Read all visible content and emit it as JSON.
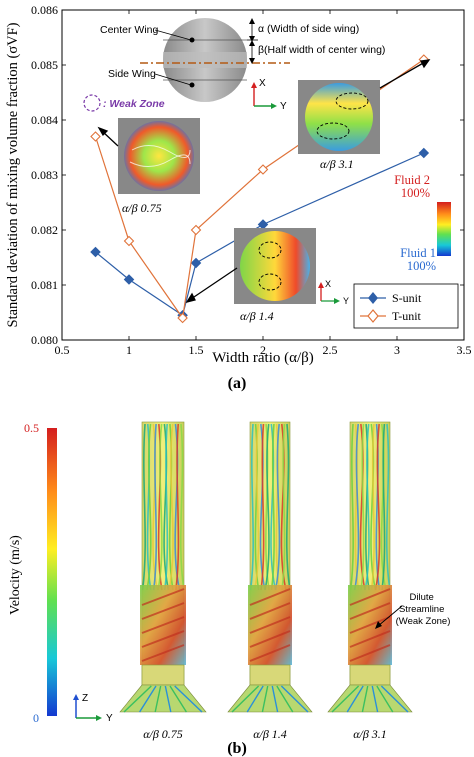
{
  "panel_a": {
    "label": "(a)",
    "chart_data": {
      "type": "line",
      "xlabel": "Width ratio (α/β)",
      "ylabel": "Standard deviation of mixing volume fraction (σVF)",
      "xlim": [
        0.5,
        3.5
      ],
      "ylim": [
        0.08,
        0.086
      ],
      "xticks": [
        "0.5",
        "1",
        "1.5",
        "2",
        "2.5",
        "3",
        "3.5"
      ],
      "yticks": [
        "0.080",
        "0.081",
        "0.082",
        "0.083",
        "0.084",
        "0.085",
        "0.086"
      ],
      "legend": "bottom-right",
      "series": [
        {
          "name": "S-unit",
          "color": "#2e5fa8",
          "marker": "diamond-filled",
          "x": [
            0.75,
            1.0,
            1.4,
            1.5,
            2.0,
            3.2
          ],
          "y": [
            0.0816,
            0.0811,
            0.08045,
            0.0814,
            0.0821,
            0.0834
          ]
        },
        {
          "name": "T-unit",
          "color": "#e0733a",
          "marker": "diamond-open",
          "x": [
            0.75,
            1.0,
            1.4,
            1.5,
            2.0,
            3.2
          ],
          "y": [
            0.0837,
            0.0818,
            0.0804,
            0.082,
            0.0831,
            0.0851
          ]
        }
      ]
    },
    "annotations": {
      "weak_zone": ": Weak Zone",
      "center_wing": "Center Wing",
      "side_wing": "Side Wing",
      "alpha_def": "α (Width of side wing)",
      "beta_def": "β(Half width of center wing)",
      "axis_x": "X",
      "axis_y": "Y",
      "inset_075": "α/β 0.75",
      "inset_14": "α/β 1.4",
      "inset_31": "α/β 3.1",
      "fluid2": "Fluid 2",
      "fluid2_pct": "100%",
      "fluid1": "Fluid 1",
      "fluid1_pct": "100%"
    }
  },
  "panel_b": {
    "label": "(b)",
    "colorbar_title": "Velocity (m/s)",
    "colorbar_max": "0.5",
    "colorbar_min": "0",
    "axis_z": "Z",
    "axis_y": "Y",
    "dilute_note": "Dilute\nStreamline\n(Weak Zone)",
    "captions": [
      "α/β 0.75",
      "α/β 1.4",
      "α/β 3.1"
    ]
  }
}
